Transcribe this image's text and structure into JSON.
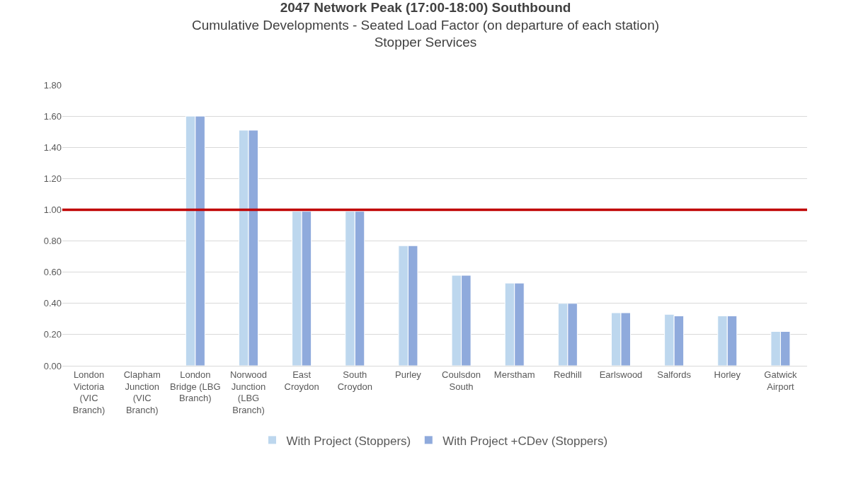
{
  "chart_data": {
    "type": "bar",
    "title": "2047 Network Peak (17:00-18:00) Southbound",
    "subtitle": "Cumulative Developments - Seated Load Factor (on departure of each station)\nStopper Services",
    "categories": [
      "London\nVictoria\n(VIC\nBranch)",
      "Clapham\nJunction\n(VIC\nBranch)",
      "London\nBridge (LBG\nBranch)",
      "Norwood\nJunction\n(LBG\nBranch)",
      "East\nCroydon",
      "South\nCroydon",
      "Purley",
      "Coulsdon\nSouth",
      "Merstham",
      "Redhill",
      "Earlswood",
      "Salfords",
      "Horley",
      "Gatwick\nAirport"
    ],
    "series": [
      {
        "name": "With Project (Stoppers)",
        "color": "#bdd7ee",
        "values": [
          null,
          null,
          1.6,
          1.51,
          0.99,
          0.99,
          0.77,
          0.58,
          0.53,
          0.4,
          0.34,
          0.33,
          0.32,
          0.22
        ]
      },
      {
        "name": "With Project +CDev (Stoppers)",
        "color": "#8faadc",
        "values": [
          null,
          null,
          1.6,
          1.51,
          0.99,
          0.99,
          0.77,
          0.58,
          0.53,
          0.4,
          0.34,
          0.32,
          0.32,
          0.22
        ]
      }
    ],
    "ylim": [
      0,
      1.8
    ],
    "yticks": [
      {
        "value": 0,
        "label": "0.00"
      },
      {
        "value": 0.2,
        "label": "0.20"
      },
      {
        "value": 0.4,
        "label": "0.40"
      },
      {
        "value": 0.6,
        "label": "0.60"
      },
      {
        "value": 0.8,
        "label": "0.80"
      },
      {
        "value": 1,
        "label": "1.00"
      },
      {
        "value": 1.2,
        "label": "1.20"
      },
      {
        "value": 1.4,
        "label": "1.40"
      },
      {
        "value": 1.6,
        "label": "1.60"
      },
      {
        "value": 1.8,
        "label": "1.80"
      }
    ],
    "grid": "y",
    "legend": "bottom",
    "ref_lines": [
      {
        "axis": "y",
        "value": 1,
        "color": "#c00000"
      }
    ]
  }
}
